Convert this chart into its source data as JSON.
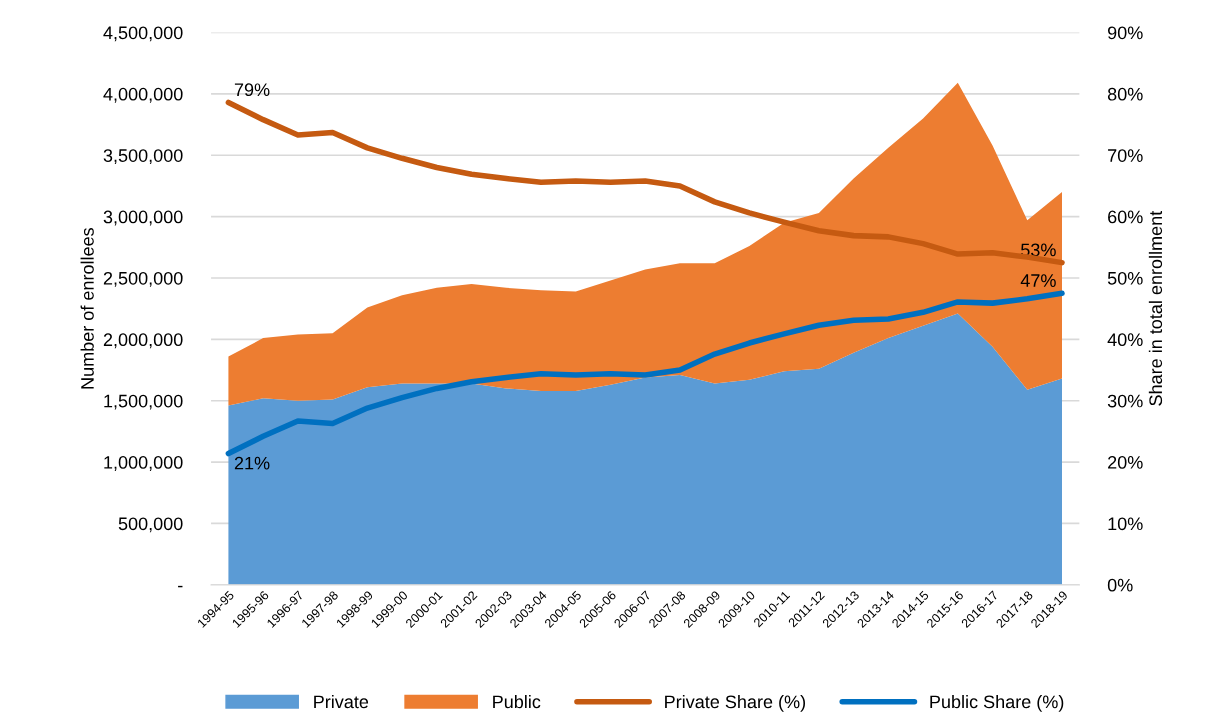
{
  "chart_data": {
    "type": "area",
    "stacked": true,
    "ylabel": "Number of enrollees",
    "y2label": "Share in total enrollment",
    "categories": [
      "1994-95",
      "1995-96",
      "1996-97",
      "1997-98",
      "1998-99",
      "1999-00",
      "2000-01",
      "2001-02",
      "2002-03",
      "2003-04",
      "2004-05",
      "2005-06",
      "2006-07",
      "2007-08",
      "2008-09",
      "2009-10",
      "2010-11",
      "2011-12",
      "2012-13",
      "2013-14",
      "2014-15",
      "2015-16",
      "2016-17",
      "2017-18",
      "2018-19"
    ],
    "series": [
      {
        "name": "Private",
        "color": "#5b9bd5",
        "values": [
          1460000,
          1520000,
          1500000,
          1510000,
          1610000,
          1640000,
          1640000,
          1640000,
          1600000,
          1580000,
          1580000,
          1630000,
          1690000,
          1710000,
          1640000,
          1670000,
          1740000,
          1760000,
          1890000,
          2010000,
          2110000,
          2210000,
          1940000,
          1590000,
          1680000
        ]
      },
      {
        "name": "Public",
        "color": "#ed7d31",
        "values": [
          400000,
          490000,
          540000,
          540000,
          650000,
          720000,
          780000,
          810000,
          820000,
          820000,
          810000,
          850000,
          880000,
          910000,
          980000,
          1090000,
          1210000,
          1270000,
          1420000,
          1550000,
          1690000,
          1880000,
          1640000,
          1380000,
          1520000
        ]
      },
      {
        "name": "Private Share (%)",
        "type": "line",
        "axis": "y2",
        "color": "#c55a11",
        "values": [
          78.6,
          75.8,
          73.3,
          73.7,
          71.2,
          69.5,
          68.0,
          66.9,
          66.2,
          65.6,
          65.8,
          65.6,
          65.8,
          65.0,
          62.4,
          60.6,
          59.1,
          57.7,
          56.9,
          56.7,
          55.6,
          53.9,
          54.1,
          53.4,
          52.5
        ]
      },
      {
        "name": "Public Share (%)",
        "type": "line",
        "axis": "y2",
        "color": "#0070c0",
        "values": [
          21.4,
          24.2,
          26.7,
          26.3,
          28.8,
          30.5,
          32.0,
          33.1,
          33.8,
          34.4,
          34.2,
          34.4,
          34.2,
          35.0,
          37.6,
          39.4,
          40.9,
          42.3,
          43.1,
          43.3,
          44.4,
          46.1,
          45.9,
          46.6,
          47.5
        ]
      }
    ],
    "ylim": [
      0,
      4500000
    ],
    "yticks": [
      {
        "value": 0,
        "label": "-"
      },
      {
        "value": 500000,
        "label": "500,000"
      },
      {
        "value": 1000000,
        "label": "1,000,000"
      },
      {
        "value": 1500000,
        "label": "1,500,000"
      },
      {
        "value": 2000000,
        "label": "2,000,000"
      },
      {
        "value": 2500000,
        "label": "2,500,000"
      },
      {
        "value": 3000000,
        "label": "3,000,000"
      },
      {
        "value": 3500000,
        "label": "3,500,000"
      },
      {
        "value": 4000000,
        "label": "4,000,000"
      },
      {
        "value": 4500000,
        "label": "4,500,000"
      }
    ],
    "y2lim": [
      0,
      90
    ],
    "y2ticks": [
      {
        "value": 0,
        "label": "0%"
      },
      {
        "value": 10,
        "label": "10%"
      },
      {
        "value": 20,
        "label": "20%"
      },
      {
        "value": 30,
        "label": "30%"
      },
      {
        "value": 40,
        "label": "40%"
      },
      {
        "value": 50,
        "label": "50%"
      },
      {
        "value": 60,
        "label": "60%"
      },
      {
        "value": 70,
        "label": "70%"
      },
      {
        "value": 80,
        "label": "80%"
      },
      {
        "value": 90,
        "label": "90%"
      }
    ],
    "annotations": [
      {
        "text": "79%",
        "x": "1994-95",
        "y": 3930000
      },
      {
        "text": "21%",
        "x": "1994-95",
        "y": 1070000
      },
      {
        "text": "53%",
        "x": "2018-19",
        "y": 2625000
      },
      {
        "text": "47%",
        "x": "2018-19",
        "y": 2375000
      }
    ],
    "grid": "y",
    "legend": "bottom",
    "marker": "none",
    "line_style": "solid"
  }
}
